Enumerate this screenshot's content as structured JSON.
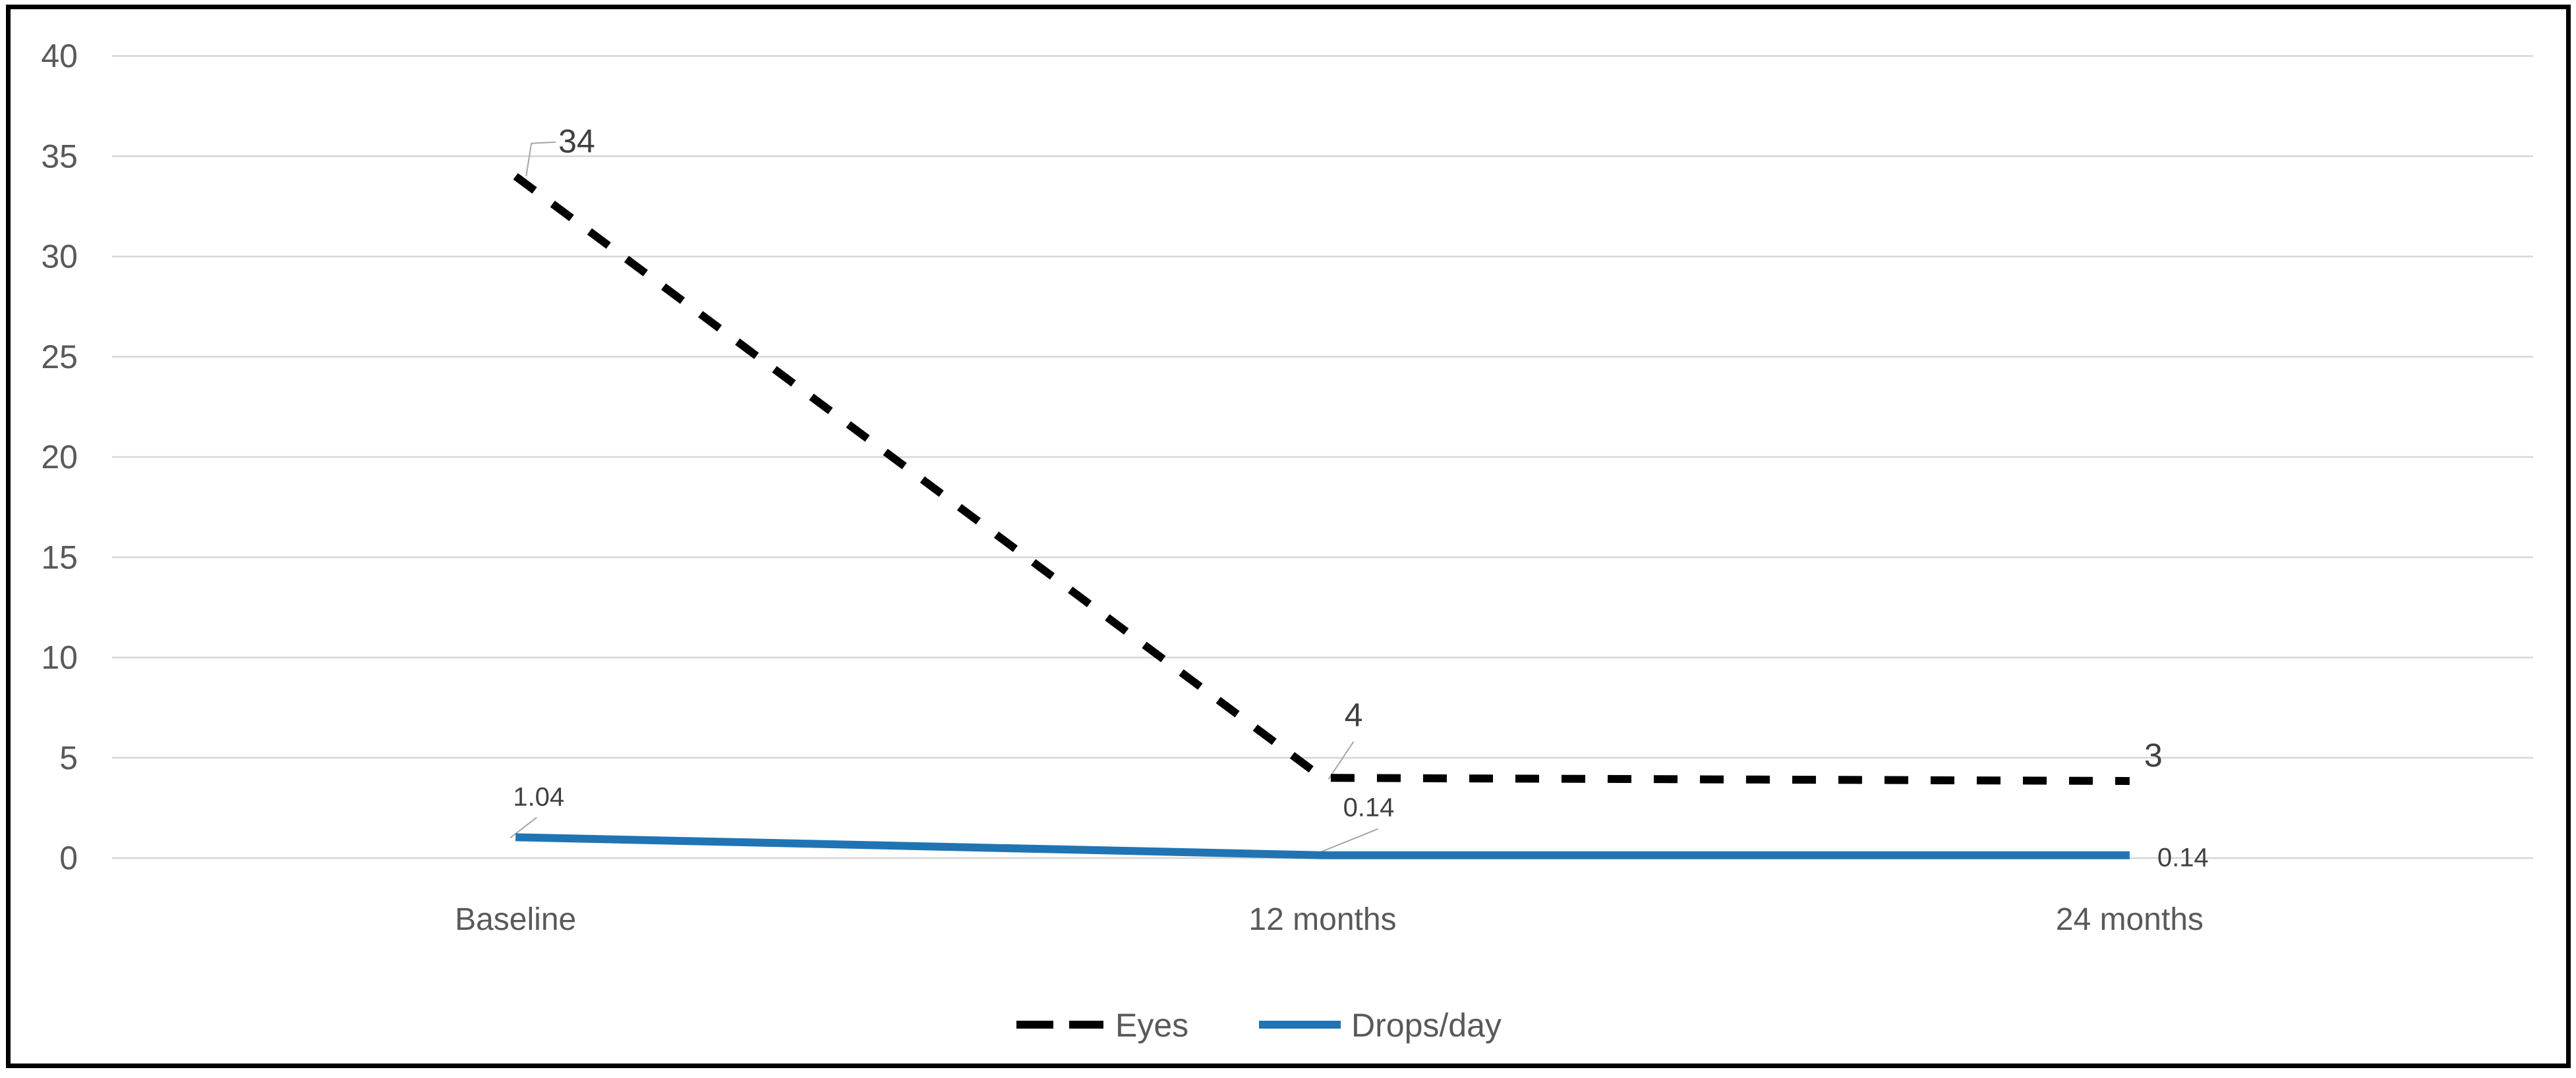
{
  "chart_data": {
    "type": "line",
    "title": "",
    "xlabel": "",
    "ylabel": "",
    "categories": [
      "Baseline",
      "12 months",
      "24 months"
    ],
    "series": [
      {
        "name": "Eyes",
        "style": "dashed",
        "color": "#000000",
        "values": [
          34,
          4,
          3
        ],
        "data_labels": [
          "34",
          "4",
          "3"
        ]
      },
      {
        "name": "Drops/day",
        "style": "solid",
        "color": "#2074B4",
        "values": [
          1.04,
          0.14,
          0.14
        ],
        "data_labels": [
          "1.04",
          "0.14",
          "0.14"
        ]
      }
    ],
    "ylim": [
      0,
      40
    ],
    "yticks": [
      "0",
      "5",
      "10",
      "15",
      "20",
      "25",
      "30",
      "35",
      "40"
    ],
    "grid": true,
    "legend_position": "bottom-center",
    "legend_entries": [
      "Eyes",
      "Drops/day"
    ],
    "colors": {
      "background": "#FFFFFF",
      "border": "#000000",
      "gridline": "#D6D6D6",
      "axis_text": "#595959",
      "data_label_text": "#404040",
      "leader_line": "#A6A6A6"
    }
  }
}
